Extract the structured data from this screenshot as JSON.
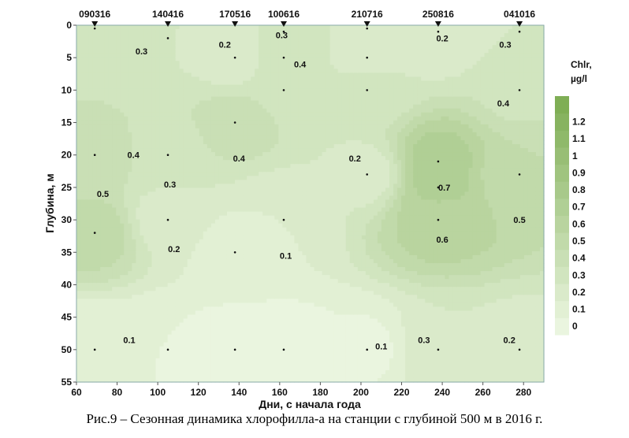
{
  "chart_data": {
    "type": "heatmap",
    "subtype": "filled-contour",
    "xlabel": "Дни, с начала года",
    "ylabel": "Глубина, м",
    "xlim": [
      60,
      290
    ],
    "ylim": [
      55,
      0
    ],
    "xticks": [
      60,
      80,
      100,
      120,
      140,
      160,
      180,
      200,
      220,
      240,
      260,
      280
    ],
    "yticks": [
      0,
      5,
      10,
      15,
      20,
      25,
      30,
      35,
      40,
      45,
      50,
      55
    ],
    "colorbar": {
      "title_line1": "Chlr,",
      "title_line2": "µg/l",
      "levels": [
        0,
        0.1,
        0.2,
        0.3,
        0.4,
        0.5,
        0.6,
        0.7,
        0.8,
        0.9,
        1,
        1.1,
        1.2
      ],
      "color_low": "#eaf5df",
      "color_high": "#7fae55"
    },
    "stations": [
      {
        "label": "090316",
        "day": 69
      },
      {
        "label": "140416",
        "day": 105
      },
      {
        "label": "170516",
        "day": 138
      },
      {
        "label": "100616",
        "day": 162
      },
      {
        "label": "210716",
        "day": 203
      },
      {
        "label": "250816",
        "day": 238
      },
      {
        "label": "041016",
        "day": 278
      }
    ],
    "samples": [
      [
        69,
        0.5,
        0.35
      ],
      [
        69,
        20,
        0.45
      ],
      [
        69,
        32,
        0.55
      ],
      [
        69,
        50,
        0.1
      ],
      [
        105,
        2,
        0.3
      ],
      [
        105,
        20,
        0.35
      ],
      [
        105,
        30,
        0.25
      ],
      [
        105,
        50,
        0.1
      ],
      [
        138,
        5,
        0.25
      ],
      [
        138,
        15,
        0.45
      ],
      [
        138,
        35,
        0.15
      ],
      [
        138,
        50,
        0.05
      ],
      [
        162,
        1,
        0.3
      ],
      [
        162,
        5,
        0.35
      ],
      [
        162,
        10,
        0.38
      ],
      [
        162,
        30,
        0.2
      ],
      [
        162,
        50,
        0.05
      ],
      [
        203,
        0.5,
        0.3
      ],
      [
        203,
        5,
        0.25
      ],
      [
        203,
        10,
        0.35
      ],
      [
        203,
        23,
        0.25
      ],
      [
        203,
        50,
        0.08
      ],
      [
        238,
        1,
        0.2
      ],
      [
        238,
        21,
        0.75
      ],
      [
        238,
        25,
        0.72
      ],
      [
        238,
        30,
        0.65
      ],
      [
        238,
        50,
        0.3
      ],
      [
        278,
        1,
        0.3
      ],
      [
        278,
        10,
        0.38
      ],
      [
        278,
        23,
        0.5
      ],
      [
        278,
        50,
        0.25
      ]
    ],
    "contour_labels": [
      {
        "text": "0.3",
        "day": 92,
        "depth": 4
      },
      {
        "text": "0.2",
        "day": 133,
        "depth": 3
      },
      {
        "text": "0.3",
        "day": 161,
        "depth": 1.5
      },
      {
        "text": "0.4",
        "day": 170,
        "depth": 6
      },
      {
        "text": "0.2",
        "day": 240,
        "depth": 2
      },
      {
        "text": "0.3",
        "day": 271,
        "depth": 3
      },
      {
        "text": "0.4",
        "day": 270,
        "depth": 12
      },
      {
        "text": "0.4",
        "day": 88,
        "depth": 20
      },
      {
        "text": "0.4",
        "day": 140,
        "depth": 20.5
      },
      {
        "text": "0.2",
        "day": 197,
        "depth": 20.5
      },
      {
        "text": "0.5",
        "day": 73,
        "depth": 26
      },
      {
        "text": "0.3",
        "day": 106,
        "depth": 24.5
      },
      {
        "text": "0.7",
        "day": 241,
        "depth": 25
      },
      {
        "text": "0.5",
        "day": 278,
        "depth": 30
      },
      {
        "text": "0.6",
        "day": 240,
        "depth": 33
      },
      {
        "text": "0.2",
        "day": 108,
        "depth": 34.5
      },
      {
        "text": "0.1",
        "day": 163,
        "depth": 35.5
      },
      {
        "text": "0.1",
        "day": 86,
        "depth": 48.5
      },
      {
        "text": "0.1",
        "day": 210,
        "depth": 49.5
      },
      {
        "text": "0.3",
        "day": 231,
        "depth": 48.5
      },
      {
        "text": "0.2",
        "day": 273,
        "depth": 48.5
      }
    ]
  },
  "caption": "Рис.9 – Сезонная динамика хлорофилла-а на станции с глубиной 500 м в 2016 г."
}
